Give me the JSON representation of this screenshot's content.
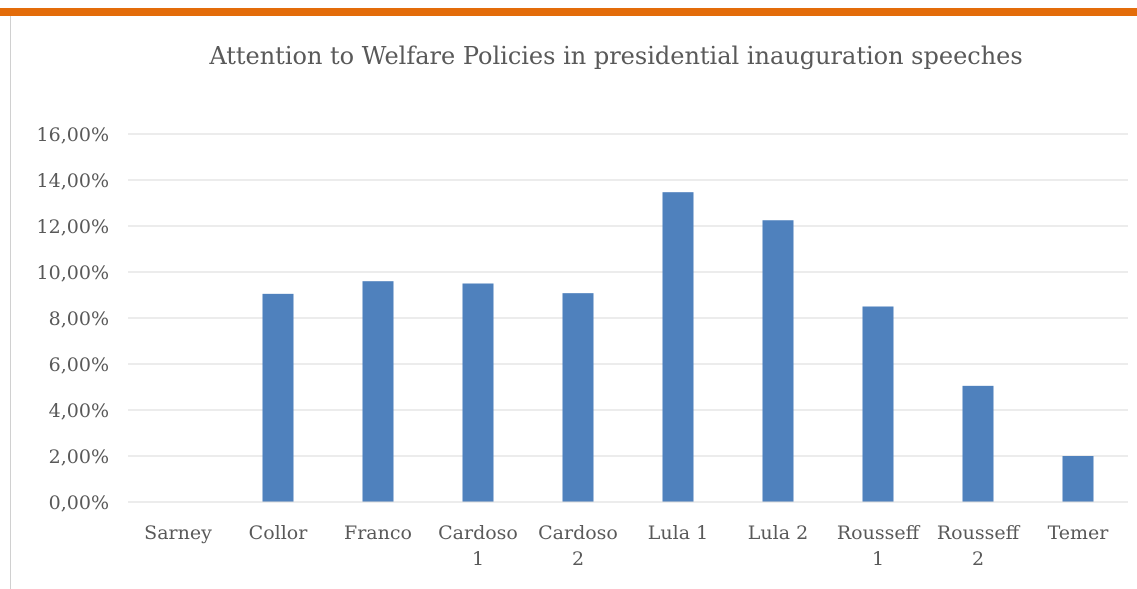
{
  "chart_data": {
    "type": "bar",
    "title": "Attention to Welfare Policies in presidential inauguration speeches",
    "categories": [
      [
        "Sarney"
      ],
      [
        "Collor"
      ],
      [
        "Franco"
      ],
      [
        "Cardoso",
        "1"
      ],
      [
        "Cardoso",
        "2"
      ],
      [
        "Lula 1"
      ],
      [
        "Lula 2"
      ],
      [
        "Rousseff",
        "1"
      ],
      [
        "Rousseff",
        "2"
      ],
      [
        "Temer"
      ]
    ],
    "values": [
      0.0,
      9.05,
      9.6,
      9.5,
      9.08,
      13.47,
      12.25,
      8.5,
      5.05,
      2.0
    ],
    "yticks": [
      "0,00%",
      "2,00%",
      "4,00%",
      "6,00%",
      "8,00%",
      "10,00%",
      "12,00%",
      "14,00%",
      "16,00%"
    ],
    "ylim": [
      0,
      16
    ],
    "grid": true,
    "bar_color": "#4f81bd",
    "grid_color": "#d9d9d9",
    "text_color": "#595959",
    "accent_color": "#e36c0a"
  }
}
